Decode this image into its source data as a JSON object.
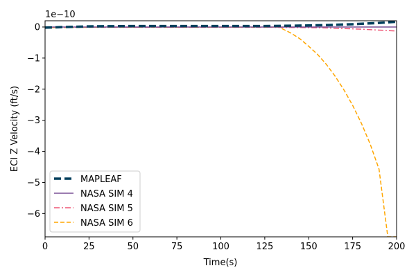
{
  "chart_data": {
    "type": "line",
    "xlabel": "Time(s)",
    "ylabel": "ECI Z Velocity (ft/s)",
    "y_offset_label": "1e−10",
    "xlim": [
      0,
      200
    ],
    "ylim": [
      -6.75,
      0.2
    ],
    "x_ticks": [
      0,
      25,
      50,
      75,
      100,
      125,
      150,
      175,
      200
    ],
    "x_tick_labels": [
      "0",
      "25",
      "50",
      "75",
      "100",
      "125",
      "150",
      "175",
      "200"
    ],
    "y_ticks": [
      0,
      -1,
      -2,
      -3,
      -4,
      -5,
      -6
    ],
    "y_tick_labels": [
      "0",
      "−1",
      "−2",
      "−3",
      "−4",
      "−5",
      "−6"
    ],
    "grid": false,
    "legend_position": "lower left",
    "series": [
      {
        "name": "MAPLEAF",
        "color": "#003f5c",
        "style": "dashed-thick",
        "x": [
          0,
          25,
          50,
          75,
          100,
          125,
          140,
          160,
          175,
          190,
          200
        ],
        "y": [
          -0.02,
          0.02,
          0.03,
          0.03,
          0.03,
          0.03,
          0.04,
          0.06,
          0.09,
          0.13,
          0.17
        ]
      },
      {
        "name": "NASA SIM 4",
        "color": "#7a5195",
        "style": "solid",
        "x": [
          0,
          50,
          100,
          150,
          200
        ],
        "y": [
          0.0,
          0.0,
          0.0,
          0.0,
          0.0
        ]
      },
      {
        "name": "NASA SIM 5",
        "color": "#ef5675",
        "style": "dashdot",
        "x": [
          0,
          50,
          100,
          130,
          150,
          160,
          170,
          180,
          190,
          200
        ],
        "y": [
          -0.01,
          -0.01,
          -0.01,
          -0.01,
          -0.02,
          -0.03,
          -0.05,
          -0.07,
          -0.1,
          -0.13
        ]
      },
      {
        "name": "NASA SIM 6",
        "color": "#ffa600",
        "style": "dashed",
        "x": [
          0,
          25,
          50,
          75,
          100,
          125,
          133,
          140,
          145,
          150,
          155,
          160,
          165,
          170,
          175,
          180,
          185,
          190,
          195,
          200
        ],
        "y": [
          -0.02,
          -0.01,
          -0.01,
          -0.01,
          -0.01,
          -0.01,
          0.0,
          -0.2,
          -0.38,
          -0.62,
          -0.88,
          -1.2,
          -1.58,
          -2.02,
          -2.52,
          -3.1,
          -3.77,
          -4.57,
          -6.75,
          -6.75
        ]
      }
    ]
  }
}
